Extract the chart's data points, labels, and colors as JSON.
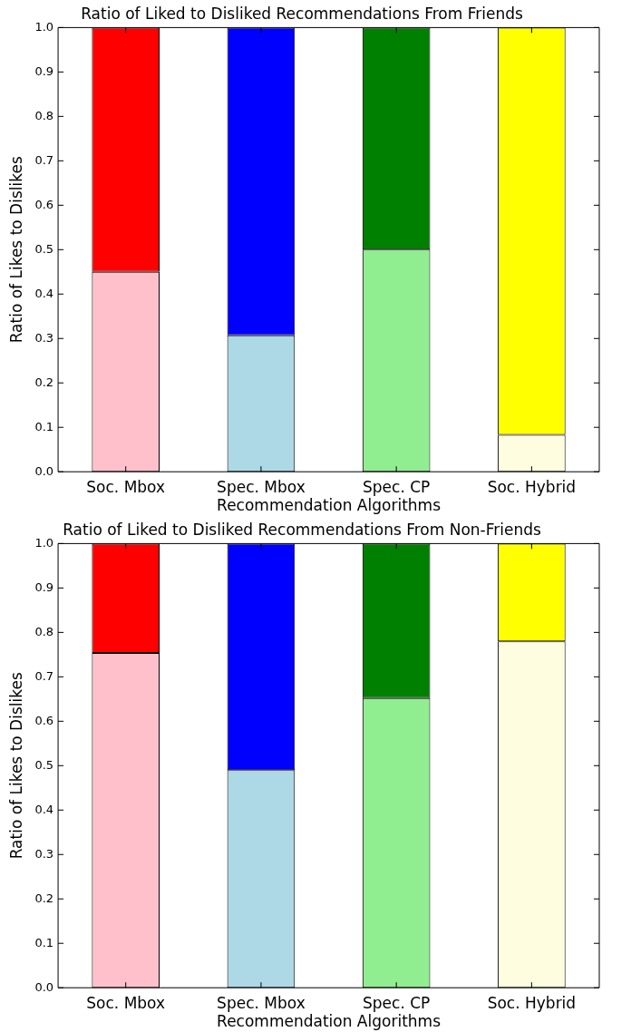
{
  "chart_data": [
    {
      "type": "bar",
      "title": "Ratio of Liked to Disliked Recommendations From Friends",
      "xlabel": "Recommendation Algorithms",
      "ylabel": "Ratio of Likes to Dislikes",
      "categories": [
        "Soc. Mbox",
        "Spec. Mbox",
        "Spec. CP",
        "Soc. Hybrid"
      ],
      "stacked": true,
      "series": [
        {
          "colors": [
            "#ffc0cb",
            "#add8e6",
            "#90ee90",
            "#fffde0"
          ],
          "values": [
            0.45,
            0.307,
            0.5,
            0.083
          ]
        },
        {
          "colors": [
            "#ff0000",
            "#0000ff",
            "#008000",
            "#ffff00"
          ],
          "values": [
            0.55,
            0.693,
            0.5,
            0.917
          ]
        }
      ],
      "ylim": [
        0,
        1
      ],
      "yticks": [
        {
          "value": 0,
          "label": "0.0"
        },
        {
          "value": 0.1,
          "label": "0.1"
        },
        {
          "value": 0.2,
          "label": "0.2"
        },
        {
          "value": 0.3,
          "label": "0.3"
        },
        {
          "value": 0.4,
          "label": "0.4"
        },
        {
          "value": 0.5,
          "label": "0.5"
        },
        {
          "value": 0.6,
          "label": "0.6"
        },
        {
          "value": 0.7,
          "label": "0.7"
        },
        {
          "value": 0.8,
          "label": "0.8"
        },
        {
          "value": 0.9,
          "label": "0.9"
        },
        {
          "value": 1,
          "label": "1.0"
        }
      ],
      "grid": false,
      "legend": false
    },
    {
      "type": "bar",
      "title": "Ratio of Liked to Disliked Recommendations From Non-Friends",
      "xlabel": "Recommendation Algorithms",
      "ylabel": "Ratio of Likes to Dislikes",
      "categories": [
        "Soc. Mbox",
        "Spec. Mbox",
        "Spec. CP",
        "Soc. Hybrid"
      ],
      "stacked": true,
      "series": [
        {
          "colors": [
            "#ffc0cb",
            "#add8e6",
            "#90ee90",
            "#fffde0"
          ],
          "values": [
            0.754,
            0.49,
            0.652,
            0.78
          ]
        },
        {
          "colors": [
            "#ff0000",
            "#0000ff",
            "#008000",
            "#ffff00"
          ],
          "values": [
            0.246,
            0.51,
            0.348,
            0.22
          ]
        }
      ],
      "ylim": [
        0,
        1
      ],
      "yticks": [
        {
          "value": 0,
          "label": "0.0"
        },
        {
          "value": 0.1,
          "label": "0.1"
        },
        {
          "value": 0.2,
          "label": "0.2"
        },
        {
          "value": 0.3,
          "label": "0.3"
        },
        {
          "value": 0.4,
          "label": "0.4"
        },
        {
          "value": 0.5,
          "label": "0.5"
        },
        {
          "value": 0.6,
          "label": "0.6"
        },
        {
          "value": 0.7,
          "label": "0.7"
        },
        {
          "value": 0.8,
          "label": "0.8"
        },
        {
          "value": 0.9,
          "label": "0.9"
        },
        {
          "value": 1,
          "label": "1.0"
        }
      ],
      "grid": false,
      "legend": false
    }
  ]
}
